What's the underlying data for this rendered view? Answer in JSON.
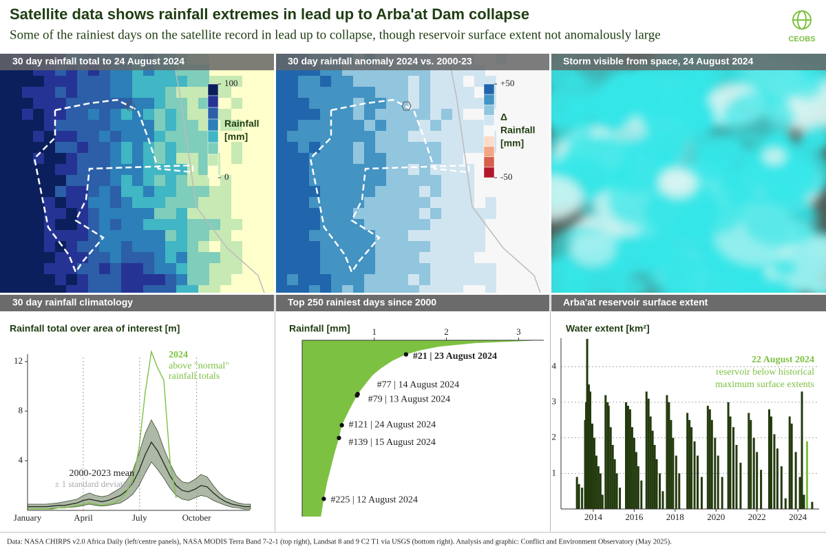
{
  "header": {
    "title": "Satellite data shows rainfall extremes in lead up to Arba'at Dam collapse",
    "subtitle": "Some of the rainiest days on the satellite record in lead up to collapse, though reservoir surface extent not anomalously large",
    "logo": "CEOBS"
  },
  "panels": [
    "30 day rainfall total to 24 August 2024",
    "30 day rainfall anomaly 2024 vs. 2000-23",
    "Storm visible from space, 24 August 2024"
  ],
  "maps": [
    {
      "colors": [
        "#0b1f5c",
        "#253494",
        "#2c5fa8",
        "#2c7fb8",
        "#41b6c4",
        "#7fcdbb",
        "#c7e9b4",
        "#ffffcc"
      ],
      "clim": [
        0,
        100
      ],
      "ticks": [
        100,
        0
      ],
      "label_lines": [
        "Rainfall",
        "[mm]"
      ]
    },
    {
      "colors": [
        "#2166ac",
        "#4393c3",
        "#92c5de",
        "#d1e5f0",
        "#f7f7f7",
        "#fddbc7",
        "#f4a582",
        "#d6604d",
        "#b2182b"
      ],
      "clim": [
        -50,
        50
      ],
      "ticks": [
        {
          "value": 50,
          "label": "+50"
        },
        -50
      ],
      "label_lines": [
        "Δ",
        "Rainfall",
        "[mm]"
      ]
    }
  ],
  "chart_data": [
    {
      "type": "line",
      "title": "30 day rainfall climatology",
      "ylabel": "Rainfall total over area of interest [m]",
      "xlim": [
        1,
        360
      ],
      "xticks": [
        {
          "value": 1,
          "label": "January"
        },
        {
          "value": 91,
          "label": "April"
        },
        {
          "value": 182,
          "label": "July"
        },
        {
          "value": 274,
          "label": "October"
        }
      ],
      "ylim": [
        0,
        14
      ],
      "yticks": [
        4,
        8,
        12
      ],
      "grid": true,
      "x": [
        1,
        11,
        21,
        31,
        41,
        51,
        61,
        71,
        81,
        91,
        101,
        111,
        121,
        131,
        141,
        151,
        161,
        171,
        181,
        191,
        201,
        211,
        221,
        231,
        241,
        251,
        261,
        271,
        281,
        291,
        301,
        311,
        321,
        331,
        341,
        351,
        361
      ],
      "series": [
        {
          "name": "2024",
          "color": "#7dc142",
          "values": [
            0.1,
            0.1,
            0.1,
            0.1,
            0.1,
            0.2,
            0.2,
            0.3,
            0.4,
            0.5,
            0.6,
            0.5,
            0.4,
            0.5,
            0.6,
            0.9,
            1.5,
            2.5,
            5.0,
            9.5,
            12.8,
            11.5,
            10.5,
            4.0,
            1.0,
            null,
            null,
            null,
            null,
            null,
            null,
            null,
            null,
            null,
            null,
            null,
            null
          ]
        },
        {
          "name": "2000-2023 mean",
          "color": "#1f2a18",
          "values": [
            0.3,
            0.3,
            0.3,
            0.3,
            0.35,
            0.4,
            0.4,
            0.5,
            0.6,
            0.8,
            0.9,
            0.8,
            0.7,
            0.8,
            1.0,
            1.2,
            1.6,
            2.2,
            3.2,
            4.5,
            5.5,
            4.8,
            3.8,
            2.8,
            2.0,
            1.6,
            1.5,
            1.7,
            2.0,
            1.9,
            1.4,
            1.0,
            0.7,
            0.5,
            0.4,
            0.3,
            0.3
          ]
        },
        {
          "name": "± 1 standard deviation",
          "color": "#8a9a80",
          "lower": [
            0.1,
            0.1,
            0.1,
            0.1,
            0.15,
            0.2,
            0.2,
            0.25,
            0.3,
            0.4,
            0.5,
            0.4,
            0.35,
            0.4,
            0.5,
            0.6,
            0.9,
            1.3,
            2.0,
            3.0,
            3.9,
            3.3,
            2.6,
            1.8,
            1.2,
            0.9,
            0.8,
            1.0,
            1.2,
            1.1,
            0.8,
            0.6,
            0.4,
            0.25,
            0.2,
            0.1,
            0.1
          ],
          "upper": [
            0.5,
            0.5,
            0.5,
            0.5,
            0.55,
            0.6,
            0.7,
            0.8,
            0.9,
            1.2,
            1.4,
            1.2,
            1.1,
            1.2,
            1.5,
            1.8,
            2.4,
            3.2,
            4.6,
            6.2,
            7.3,
            6.4,
            5.0,
            3.8,
            2.8,
            2.3,
            2.2,
            2.5,
            2.9,
            2.7,
            2.0,
            1.4,
            1.0,
            0.8,
            0.6,
            0.5,
            0.5
          ]
        }
      ],
      "annotation": [
        "above \"normal\"",
        "rainfall totals"
      ]
    },
    {
      "type": "area",
      "title": "Top 250 rainiest days since 2000",
      "xlabel": "Rainfall [mm]",
      "xlim": [
        0,
        3.35
      ],
      "xticks": [
        1,
        2,
        3
      ],
      "ylim": [
        1,
        250
      ],
      "color": "#7dc142",
      "ranks": [
        1,
        5,
        10,
        15,
        21,
        30,
        40,
        50,
        60,
        77,
        100,
        121,
        139,
        160,
        180,
        200,
        225,
        250
      ],
      "values": [
        3.34,
        2.4,
        1.9,
        1.65,
        1.44,
        1.25,
        1.1,
        0.98,
        0.9,
        0.77,
        0.65,
        0.55,
        0.51,
        0.45,
        0.4,
        0.35,
        0.3,
        0.26
      ],
      "highlights": [
        {
          "rank": 21,
          "value": 1.44,
          "label": "#21 | 23 August 2024"
        },
        {
          "rank": 77,
          "value": 0.77,
          "label": "#77 | 14 August 2024"
        },
        {
          "rank": 79,
          "value": 0.76,
          "label": "#79 | 13 August 2024"
        },
        {
          "rank": 121,
          "value": 0.55,
          "label": "#121 | 24 August 2024"
        },
        {
          "rank": 139,
          "value": 0.51,
          "label": "#139 | 15 August 2024"
        },
        {
          "rank": 225,
          "value": 0.3,
          "label": "#225 | 12 August 2024"
        }
      ]
    },
    {
      "type": "bar",
      "title": "Arba'at reservoir surface extent",
      "ylabel": "Water extent [km²]",
      "xlim": [
        2012.42,
        2025.04
      ],
      "xticks": [
        2014,
        2016,
        2018,
        2020,
        2022,
        2024
      ],
      "ylim": [
        0,
        4.8
      ],
      "yticks": [
        1,
        2,
        3,
        4
      ],
      "grid": true,
      "color": "#233a0e",
      "x": [
        2013.2,
        2013.3,
        2013.45,
        2013.6,
        2013.65,
        2013.7,
        2013.78,
        2013.85,
        2013.95,
        2014.05,
        2014.15,
        2014.25,
        2014.35,
        2014.45,
        2014.6,
        2014.7,
        2014.75,
        2014.85,
        2014.95,
        2015.05,
        2015.15,
        2015.3,
        2015.6,
        2015.7,
        2015.8,
        2015.9,
        2016.0,
        2016.1,
        2016.2,
        2016.35,
        2016.6,
        2016.7,
        2016.8,
        2016.9,
        2017.0,
        2017.1,
        2017.25,
        2017.4,
        2017.6,
        2017.7,
        2017.8,
        2017.9,
        2018.05,
        2018.2,
        2018.6,
        2018.7,
        2018.8,
        2018.95,
        2019.1,
        2019.3,
        2019.6,
        2019.7,
        2019.8,
        2019.95,
        2020.1,
        2020.3,
        2020.6,
        2020.7,
        2020.85,
        2021.0,
        2021.2,
        2021.6,
        2021.7,
        2021.85,
        2022.0,
        2022.2,
        2022.6,
        2022.7,
        2022.85,
        2023.0,
        2023.2,
        2023.4,
        2023.6,
        2023.7,
        2023.9,
        2024.1,
        2024.2,
        2024.3,
        2024.7
      ],
      "values": [
        0.9,
        0.7,
        0.6,
        2.5,
        3.0,
        4.78,
        3.5,
        3.3,
        2.4,
        2.0,
        1.5,
        1.2,
        1.0,
        0.4,
        3.2,
        3.0,
        2.9,
        2.3,
        1.8,
        1.4,
        1.0,
        0.6,
        3.0,
        2.9,
        2.8,
        2.3,
        2.0,
        1.6,
        1.2,
        0.8,
        3.3,
        3.1,
        2.6,
        2.2,
        1.8,
        1.4,
        1.0,
        0.5,
        3.2,
        3.0,
        2.5,
        2.0,
        1.5,
        1.0,
        2.7,
        2.5,
        2.3,
        1.9,
        1.5,
        0.9,
        2.9,
        2.8,
        2.5,
        2.0,
        1.5,
        0.9,
        3.0,
        2.6,
        2.3,
        1.8,
        1.3,
        2.7,
        2.5,
        2.0,
        1.6,
        1.1,
        2.8,
        2.6,
        2.1,
        1.7,
        1.2,
        0.3,
        2.6,
        2.4,
        1.6,
        0.9,
        3.3,
        0.4,
        0.2
      ],
      "highlight": {
        "x": 2024.45,
        "value": 1.9,
        "color": "#7dc142",
        "label": "22 August 2024",
        "lines": [
          "reservoir below historical",
          "maximum surface extents"
        ]
      }
    }
  ],
  "footer": "Data: NASA CHIRPS v2.0 Africa Daily (left/centre panels), NASA MODIS Terra Band 7-2-1 (top right), Landsat 8 and 9 C2 T1 via USGS (bottom right). Analysis and graphic: Conflict and Environment Observatory (May 2025)."
}
